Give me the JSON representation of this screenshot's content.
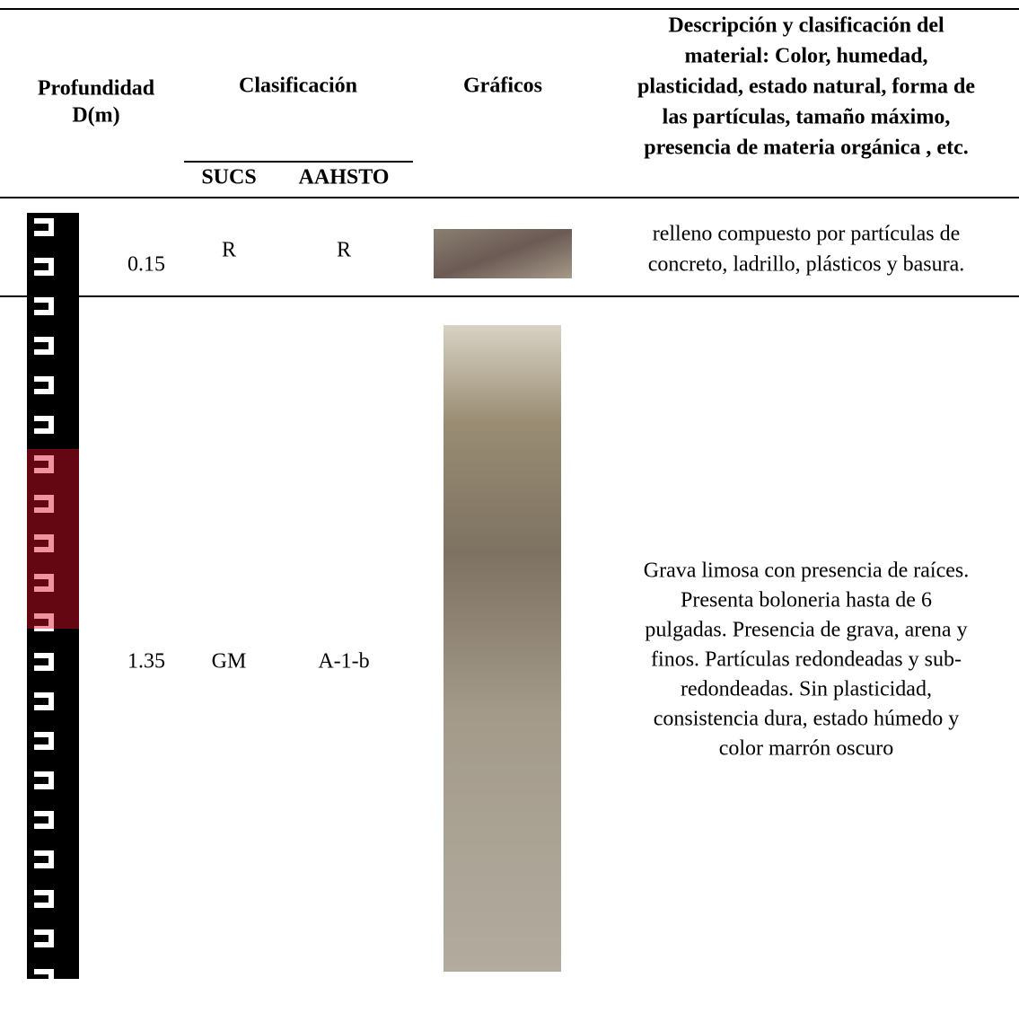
{
  "header": {
    "depth": [
      "Profundidad",
      "D(m)"
    ],
    "classification": "Clasificación",
    "sucs": "SUCS",
    "aashto": "AAHSTO",
    "graphics": "Gráficos",
    "description": [
      "Descripción y clasificación del",
      "material: Color, humedad,",
      "plasticidad, estado natural, forma de",
      "las partículas, tamaño máximo,",
      "presencia de materia orgánica , etc."
    ]
  },
  "rows": [
    {
      "depth": "0.15",
      "sucs": "R",
      "aashto": "R",
      "description": [
        "relleno compuesto por partículas de",
        "concreto, ladrillo, plásticos y basura."
      ]
    },
    {
      "depth": "1.35",
      "sucs": "GM",
      "aashto": "A-1-b",
      "description": [
        "Grava limosa con presencia de raíces.",
        "Presenta boloneria hasta de 6",
        "pulgadas. Presencia de grava, arena y",
        "finos. Partículas redondeadas y sub-",
        "redondeadas. Sin plasticidad,",
        "consistencia dura, estado húmedo y",
        "color marrón oscuro"
      ]
    }
  ]
}
